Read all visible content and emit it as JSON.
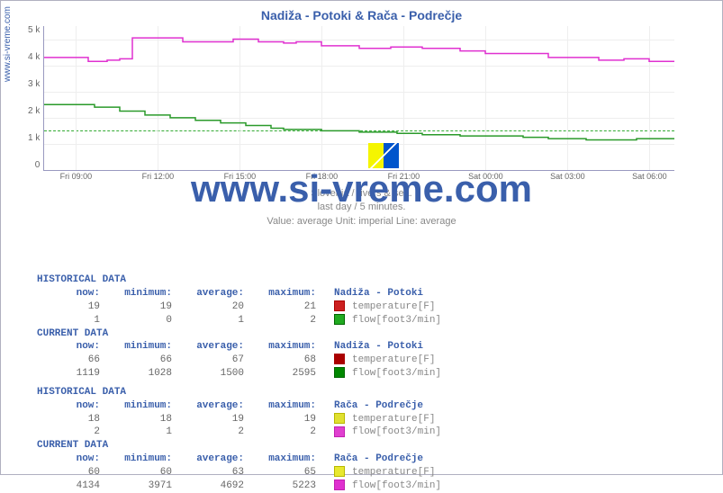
{
  "title": "Nadiža - Potoki & Rača - Podrečje",
  "y_axis_source": "www.si-vreme.com",
  "watermark": "www.si-vreme.com",
  "chart": {
    "type": "line",
    "ylim": [
      0,
      5500
    ],
    "ytick_labels": [
      "5 k",
      "4 k",
      "3 k",
      "2 k",
      "1 k",
      "0"
    ],
    "ytick_values": [
      5000,
      4000,
      3000,
      2000,
      1000,
      0
    ],
    "x_labels": [
      "Fri 09:00",
      "Fri 12:00",
      "Fri 15:00",
      "Fri 18:00",
      "Fri 21:00",
      "Sat 00:00",
      "Sat 03:00",
      "Sat 06:00"
    ],
    "x_positions_pct": [
      5,
      18,
      31,
      44,
      57,
      70,
      83,
      96
    ],
    "background_color": "#ffffff",
    "grid_color": "#eeeeee",
    "dashed_guide_y": 1500,
    "dashed_guide_color": "#33aa33",
    "series": [
      {
        "name": "Rača flow",
        "color": "#e030d0",
        "width": 1.5,
        "points": [
          [
            0,
            4300
          ],
          [
            5,
            4300
          ],
          [
            7,
            4150
          ],
          [
            10,
            4200
          ],
          [
            12,
            4250
          ],
          [
            14,
            5050
          ],
          [
            20,
            5050
          ],
          [
            22,
            4900
          ],
          [
            28,
            4900
          ],
          [
            30,
            5000
          ],
          [
            34,
            4900
          ],
          [
            38,
            4850
          ],
          [
            40,
            4900
          ],
          [
            44,
            4750
          ],
          [
            48,
            4750
          ],
          [
            50,
            4650
          ],
          [
            55,
            4700
          ],
          [
            58,
            4700
          ],
          [
            60,
            4650
          ],
          [
            66,
            4550
          ],
          [
            70,
            4450
          ],
          [
            76,
            4450
          ],
          [
            80,
            4300
          ],
          [
            86,
            4300
          ],
          [
            88,
            4200
          ],
          [
            92,
            4250
          ],
          [
            96,
            4150
          ],
          [
            100,
            4150
          ]
        ]
      },
      {
        "name": "Nadiža flow",
        "color": "#2a9a2a",
        "width": 1.5,
        "points": [
          [
            0,
            2500
          ],
          [
            6,
            2500
          ],
          [
            8,
            2400
          ],
          [
            12,
            2250
          ],
          [
            16,
            2100
          ],
          [
            20,
            2000
          ],
          [
            24,
            1900
          ],
          [
            28,
            1800
          ],
          [
            32,
            1700
          ],
          [
            36,
            1600
          ],
          [
            38,
            1550
          ],
          [
            42,
            1550
          ],
          [
            44,
            1500
          ],
          [
            48,
            1500
          ],
          [
            50,
            1450
          ],
          [
            56,
            1400
          ],
          [
            60,
            1350
          ],
          [
            66,
            1300
          ],
          [
            70,
            1300
          ],
          [
            76,
            1250
          ],
          [
            80,
            1200
          ],
          [
            84,
            1200
          ],
          [
            86,
            1150
          ],
          [
            92,
            1150
          ],
          [
            94,
            1200
          ],
          [
            100,
            1200
          ]
        ]
      }
    ]
  },
  "meta": {
    "line1": "Slovenia / rivers & sea.",
    "line2": "last day / 5 minutes.",
    "line3": "Value: average   Unit: imperial   Line: average"
  },
  "tables": {
    "headers": [
      "now:",
      "minimum:",
      "average:",
      "maximum:"
    ],
    "groups": [
      {
        "station": "Nadiža - Potoki",
        "blocks": [
          {
            "label": "HISTORICAL DATA",
            "rows": [
              {
                "vals": [
                  "19",
                  "19",
                  "20",
                  "21"
                ],
                "color": "#aa0000",
                "bg": "#cc2020",
                "metric": "temperature[F]"
              },
              {
                "vals": [
                  "1",
                  "0",
                  "1",
                  "2"
                ],
                "color": "#006600",
                "bg": "#20aa20",
                "metric": "flow[foot3/min]"
              }
            ]
          },
          {
            "label": "CURRENT DATA",
            "rows": [
              {
                "vals": [
                  "66",
                  "66",
                  "67",
                  "68"
                ],
                "color": "#aa0000",
                "bg": "#aa0000",
                "metric": "temperature[F]"
              },
              {
                "vals": [
                  "1119",
                  "1028",
                  "1500",
                  "2595"
                ],
                "color": "#006600",
                "bg": "#008800",
                "metric": "flow[foot3/min]"
              }
            ]
          }
        ]
      },
      {
        "station": "Rača - Podrečje",
        "blocks": [
          {
            "label": "HISTORICAL DATA",
            "rows": [
              {
                "vals": [
                  "18",
                  "18",
                  "19",
                  "19"
                ],
                "color": "#b8b800",
                "bg": "#e0e030",
                "metric": "temperature[F]"
              },
              {
                "vals": [
                  "2",
                  "1",
                  "2",
                  "2"
                ],
                "color": "#c020b0",
                "bg": "#e040d0",
                "metric": "flow[foot3/min]"
              }
            ]
          },
          {
            "label": "CURRENT DATA",
            "rows": [
              {
                "vals": [
                  "60",
                  "60",
                  "63",
                  "65"
                ],
                "color": "#b8b800",
                "bg": "#e8e830",
                "metric": "temperature[F]"
              },
              {
                "vals": [
                  "4134",
                  "3971",
                  "4692",
                  "5223"
                ],
                "color": "#c020b0",
                "bg": "#e030d0",
                "metric": "flow[foot3/min]"
              }
            ]
          }
        ]
      }
    ]
  }
}
